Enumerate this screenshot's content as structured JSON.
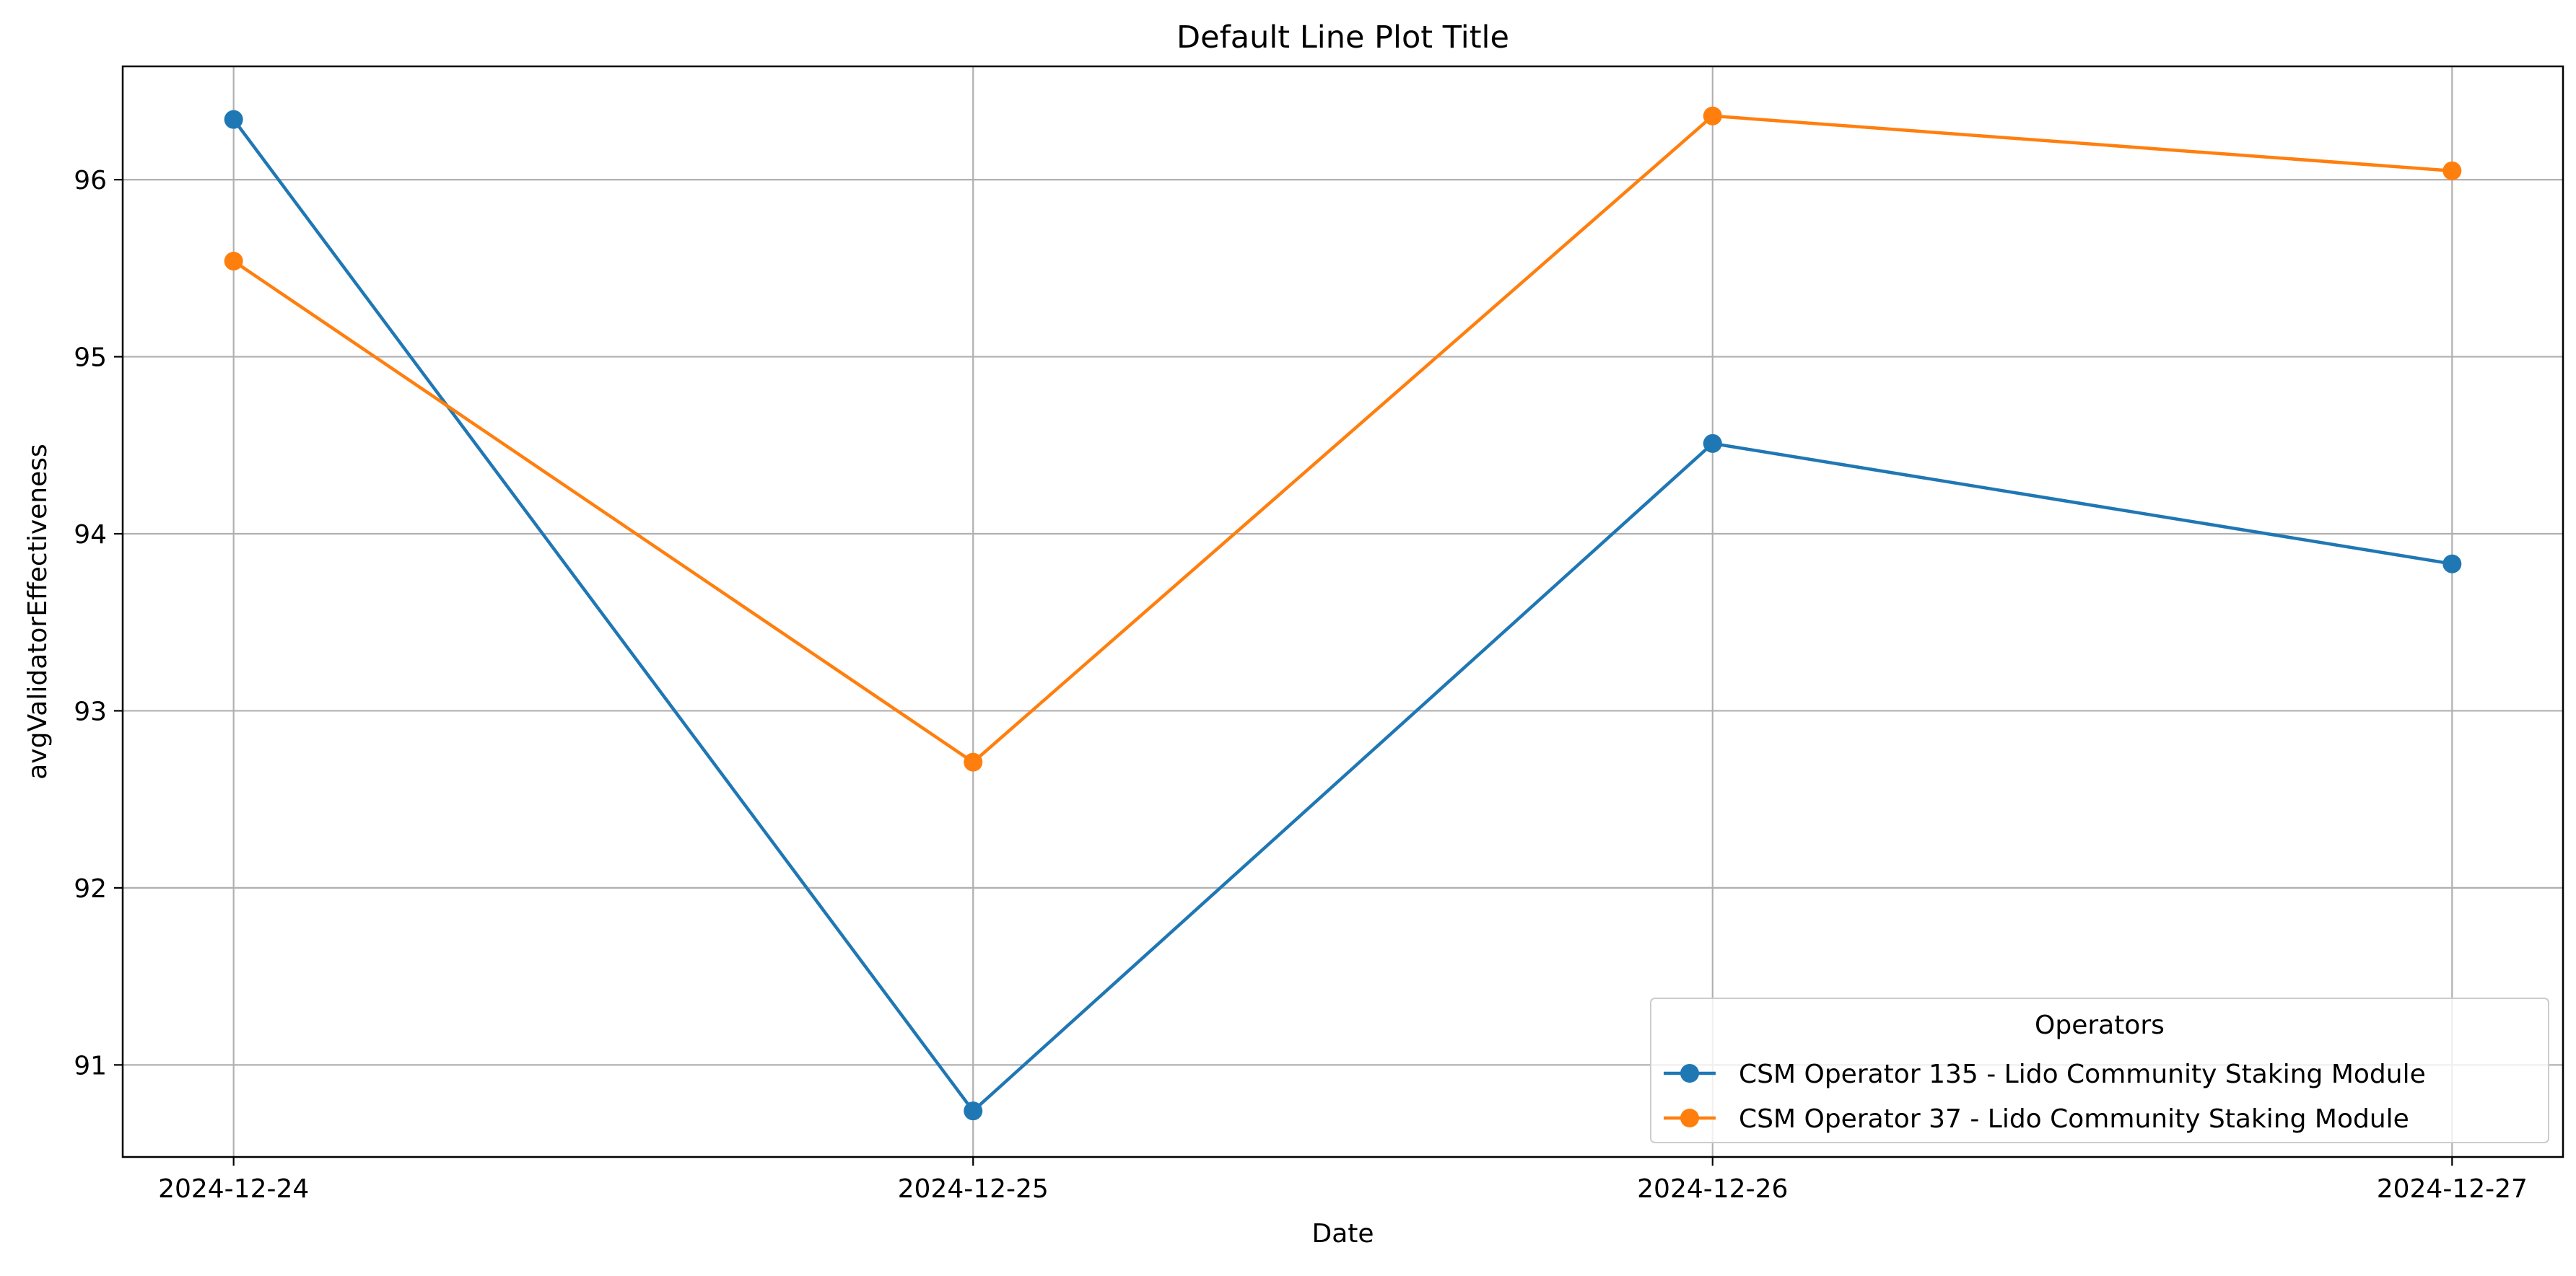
{
  "chart_data": {
    "type": "line",
    "title": "Default Line Plot Title",
    "xlabel": "Date",
    "ylabel": "avgValidatorEffectiveness",
    "categories": [
      "2024-12-24",
      "2024-12-25",
      "2024-12-26",
      "2024-12-27"
    ],
    "y_ticks": [
      91,
      92,
      93,
      94,
      95,
      96
    ],
    "ylim": [
      90.48,
      96.64
    ],
    "grid": true,
    "legend": {
      "title": "Operators",
      "placement": "lower right"
    },
    "series": [
      {
        "name": "CSM Operator 135 - Lido Community Staking Module",
        "color": "#1f77b4",
        "marker": "circle",
        "values": [
          96.34,
          90.74,
          94.51,
          93.83
        ]
      },
      {
        "name": "CSM Operator 37 - Lido Community Staking Module",
        "color": "#ff7f0e",
        "marker": "circle",
        "values": [
          95.54,
          92.71,
          96.36,
          96.05
        ]
      }
    ]
  }
}
